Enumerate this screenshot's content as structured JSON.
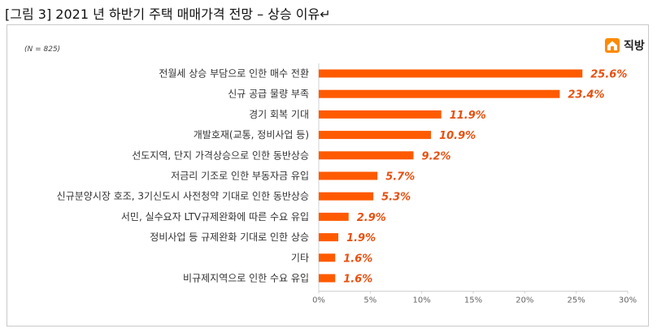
{
  "caption": "[그림 3] 2021 년 하반기 주택 매매가격 전망 – 상승 이유↵",
  "logo": {
    "text": "직방",
    "icon": "house-logo-icon"
  },
  "colors": {
    "bar": "#ff5a00",
    "value": "#e8500f",
    "axis": "#d0d0d0"
  },
  "chart_data": {
    "type": "bar",
    "orientation": "horizontal",
    "note": "(N = 825)",
    "categories": [
      "전월세 상승 부담으로 인한 매수 전환",
      "신규 공급 물량 부족",
      "경기 회복 기대",
      "개발호재(교통, 정비사업 등)",
      "선도지역, 단지 가격상승으로 인한 동반상승",
      "저금리 기조로 인한 부동자금 유입",
      "신규분양시장 호조, 3기신도시 사전청약 기대로 인한 동반상승",
      "서민, 실수요자 LTV규제완화에 따른 수요 유입",
      "정비사업 등 규제완화 기대로 인한 상승",
      "기타",
      "비규제지역으로 인한 수요 유입"
    ],
    "values": [
      25.6,
      23.4,
      11.9,
      10.9,
      9.2,
      5.7,
      5.3,
      2.9,
      1.9,
      1.6,
      1.6
    ],
    "value_labels": [
      "25.6%",
      "23.4%",
      "11.9%",
      "10.9%",
      "9.2%",
      "5.7%",
      "5.3%",
      "2.9%",
      "1.9%",
      "1.6%",
      "1.6%"
    ],
    "xlim": [
      0,
      30
    ],
    "xticks": [
      0,
      5,
      10,
      15,
      20,
      25,
      30
    ],
    "xtick_labels": [
      "0%",
      "5%",
      "10%",
      "15%",
      "20%",
      "25%",
      "30%"
    ],
    "grid": false,
    "legend": "none"
  }
}
